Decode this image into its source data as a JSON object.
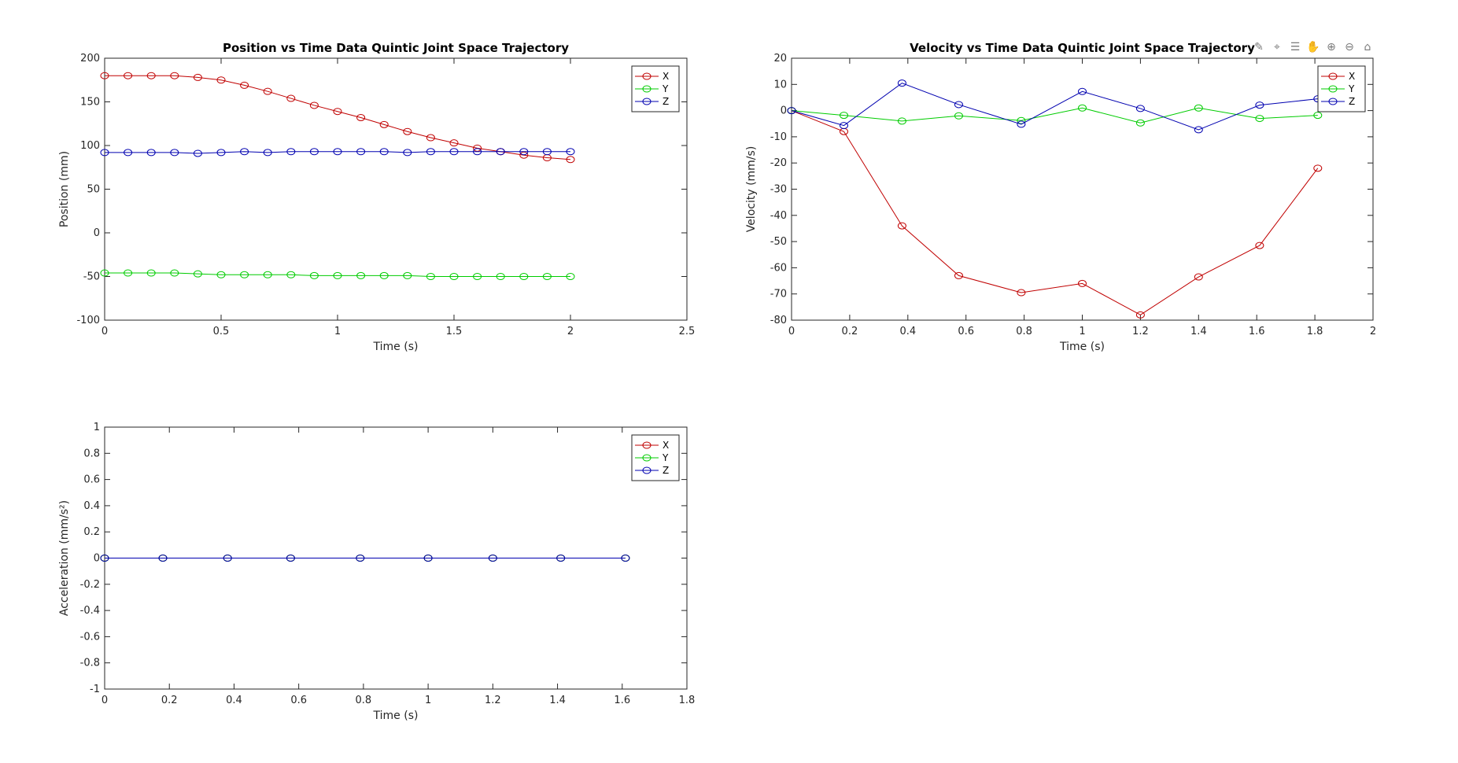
{
  "toolbar": {
    "icons": [
      "edit-plot-icon",
      "insert-data-tip-icon",
      "insert-legend-icon",
      "pan-icon",
      "zoom-in-icon",
      "zoom-out-icon",
      "home-icon"
    ]
  },
  "colors": {
    "X": "#c00000",
    "Y": "#00cc00",
    "Z": "#0000b0"
  },
  "chart_data": [
    {
      "type": "line",
      "title": "Position vs Time Data Quintic Joint Space Trajectory",
      "xlabel": "Time (s)",
      "ylabel": "Position (mm)",
      "xlim": [
        0,
        2.5
      ],
      "ylim": [
        -100,
        200
      ],
      "xticks": [
        "0",
        "0.5",
        "1",
        "1.5",
        "2",
        "2.5"
      ],
      "yticks": [
        "-100",
        "-50",
        "0",
        "50",
        "100",
        "150",
        "200"
      ],
      "xtick_values": [
        0,
        0.5,
        1,
        1.5,
        2,
        2.5
      ],
      "ytick_values": [
        -100,
        -50,
        0,
        50,
        100,
        150,
        200
      ],
      "legend": [
        "X",
        "Y",
        "Z"
      ],
      "legend_position": "top-right",
      "grid": false,
      "series": [
        {
          "name": "X",
          "x": [
            0,
            0.1,
            0.2,
            0.3,
            0.4,
            0.5,
            0.6,
            0.7,
            0.8,
            0.9,
            1.0,
            1.1,
            1.2,
            1.3,
            1.4,
            1.5,
            1.6,
            1.7,
            1.8,
            1.9,
            2.0
          ],
          "values": [
            180,
            180,
            180,
            180,
            178,
            175,
            169,
            162,
            154,
            146,
            139,
            132,
            124,
            116,
            109,
            103,
            97,
            93,
            89,
            86,
            84
          ]
        },
        {
          "name": "Y",
          "x": [
            0,
            0.1,
            0.2,
            0.3,
            0.4,
            0.5,
            0.6,
            0.7,
            0.8,
            0.9,
            1.0,
            1.1,
            1.2,
            1.3,
            1.4,
            1.5,
            1.6,
            1.7,
            1.8,
            1.9,
            2.0
          ],
          "values": [
            -46,
            -46,
            -46,
            -46,
            -47,
            -48,
            -48,
            -48,
            -48,
            -49,
            -49,
            -49,
            -49,
            -49,
            -50,
            -50,
            -50,
            -50,
            -50,
            -50,
            -50
          ]
        },
        {
          "name": "Z",
          "x": [
            0,
            0.1,
            0.2,
            0.3,
            0.4,
            0.5,
            0.6,
            0.7,
            0.8,
            0.9,
            1.0,
            1.1,
            1.2,
            1.3,
            1.4,
            1.5,
            1.6,
            1.7,
            1.8,
            1.9,
            2.0
          ],
          "values": [
            92,
            92,
            92,
            92,
            91,
            92,
            93,
            92,
            93,
            93,
            93,
            93,
            93,
            92,
            93,
            93,
            93,
            93,
            93,
            93,
            93
          ]
        }
      ]
    },
    {
      "type": "line",
      "title": "Velocity vs Time Data Quintic Joint Space Trajectory",
      "xlabel": "Time (s)",
      "ylabel": "Velocity (mm/s)",
      "xlim": [
        0,
        2
      ],
      "ylim": [
        -80,
        20
      ],
      "xticks": [
        "0",
        "0.2",
        "0.4",
        "0.6",
        "0.8",
        "1",
        "1.2",
        "1.4",
        "1.6",
        "1.8",
        "2"
      ],
      "yticks": [
        "-80",
        "-70",
        "-60",
        "-50",
        "-40",
        "-30",
        "-20",
        "-10",
        "0",
        "10",
        "20"
      ],
      "xtick_values": [
        0,
        0.2,
        0.4,
        0.6,
        0.8,
        1.0,
        1.2,
        1.4,
        1.6,
        1.8,
        2.0
      ],
      "ytick_values": [
        -80,
        -70,
        -60,
        -50,
        -40,
        -30,
        -20,
        -10,
        0,
        10,
        20
      ],
      "legend": [
        "X",
        "Y",
        "Z"
      ],
      "legend_position": "top-right",
      "grid": false,
      "series": [
        {
          "name": "X",
          "x": [
            0,
            0.18,
            0.38,
            0.575,
            0.79,
            1.0,
            1.2,
            1.4,
            1.61,
            1.81
          ],
          "values": [
            0,
            -8,
            -44,
            -63,
            -69.5,
            -66,
            -78,
            -63.5,
            -51.5,
            -22
          ]
        },
        {
          "name": "Y",
          "x": [
            0,
            0.18,
            0.38,
            0.575,
            0.79,
            1.0,
            1.2,
            1.4,
            1.61,
            1.81
          ],
          "values": [
            0,
            -1.8,
            -4,
            -2,
            -3.8,
            1,
            -4.7,
            1,
            -3,
            -1.8
          ]
        },
        {
          "name": "Z",
          "x": [
            0,
            0.18,
            0.38,
            0.575,
            0.79,
            1.0,
            1.2,
            1.4,
            1.61,
            1.81
          ],
          "values": [
            0,
            -5.7,
            10.5,
            2.3,
            -5.2,
            7.3,
            0.8,
            -7.3,
            2.1,
            4.5
          ]
        }
      ]
    },
    {
      "type": "line",
      "title": "",
      "xlabel": "Time (s)",
      "ylabel": "Acceleration (mm/s²)",
      "xlim": [
        0,
        1.8
      ],
      "ylim": [
        -1,
        1
      ],
      "xticks": [
        "0",
        "0.2",
        "0.4",
        "0.6",
        "0.8",
        "1",
        "1.2",
        "1.4",
        "1.6",
        "1.8"
      ],
      "yticks": [
        "-1",
        "-0.8",
        "-0.6",
        "-0.4",
        "-0.2",
        "0",
        "0.2",
        "0.4",
        "0.6",
        "0.8",
        "1"
      ],
      "xtick_values": [
        0,
        0.2,
        0.4,
        0.6,
        0.8,
        1.0,
        1.2,
        1.4,
        1.6,
        1.8
      ],
      "ytick_values": [
        -1,
        -0.8,
        -0.6,
        -0.4,
        -0.2,
        0,
        0.2,
        0.4,
        0.6,
        0.8,
        1
      ],
      "legend": [
        "X",
        "Y",
        "Z"
      ],
      "legend_position": "top-right",
      "grid": false,
      "series": [
        {
          "name": "X",
          "x": [
            0,
            0.18,
            0.38,
            0.575,
            0.79,
            1.0,
            1.2,
            1.41,
            1.61
          ],
          "values": [
            0,
            0,
            0,
            0,
            0,
            0,
            0,
            0,
            0
          ]
        },
        {
          "name": "Y",
          "x": [
            0,
            0.18,
            0.38,
            0.575,
            0.79,
            1.0,
            1.2,
            1.41,
            1.61
          ],
          "values": [
            0,
            0,
            0,
            0,
            0,
            0,
            0,
            0,
            0
          ]
        },
        {
          "name": "Z",
          "x": [
            0,
            0.18,
            0.38,
            0.575,
            0.79,
            1.0,
            1.2,
            1.41,
            1.61
          ],
          "values": [
            0,
            0,
            0,
            0,
            0,
            0,
            0,
            0,
            0
          ]
        }
      ]
    }
  ]
}
